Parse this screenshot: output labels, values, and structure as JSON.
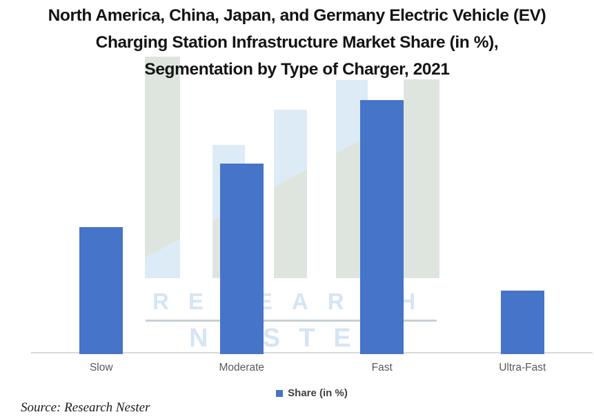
{
  "title": {
    "lines": [
      "North America, China, Japan, and Germany Electric Vehicle (EV)",
      "Charging Station Infrastructure Market Share (in %),",
      "Segmentation by Type of Charger, 2021"
    ]
  },
  "legend": {
    "label": "Share (in %)"
  },
  "source_note": "Source: Research Nester",
  "watermark": {
    "text_top": "RESEARCH",
    "text_bottom": "NESTER"
  },
  "colors": {
    "bar": "#4574c8",
    "watermark_green": "#dee5de",
    "watermark_blue": "#ddebf7",
    "watermark_text": "#d6e5f3",
    "watermark_rule": "#c6cfd6",
    "axis_line": "#d8d8d8",
    "category_label": "#595959",
    "legend_text": "#404040",
    "title_text": "#141414"
  },
  "chart_data": {
    "type": "bar",
    "title": "North America, China, Japan, and Germany Electric Vehicle (EV) Charging Station Infrastructure Market Share (in %), Segmentation by Type of Charger, 2021",
    "categories": [
      "Slow",
      "Moderate",
      "Fast",
      "Ultra-Fast"
    ],
    "series": [
      {
        "name": "Share (in %)",
        "values": [
          20,
          30,
          40,
          10
        ]
      }
    ],
    "xlabel": "",
    "ylabel": "Share (in %)",
    "ylim": [
      0,
      45
    ],
    "grid": false,
    "legend_position": "bottom",
    "source": "Source: Research Nester"
  }
}
